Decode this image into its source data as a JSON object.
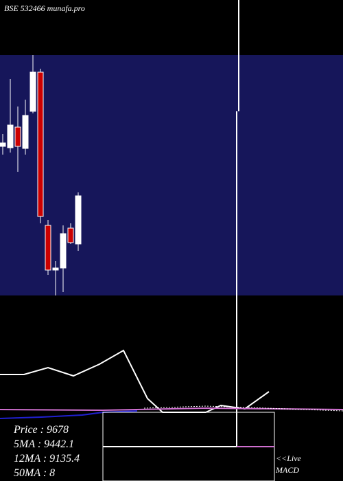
{
  "chart_data": {
    "type": "candlestick",
    "title": "BSE 532466 munafa.pro",
    "ylim": [
      8228,
      11728
    ],
    "up_color": "#ffffff",
    "down_color": "#cc0000",
    "open": [
      10398,
      10378,
      10678,
      10368,
      10908,
      11478,
      9248,
      8598,
      8628,
      9208,
      8978
    ],
    "high": [
      10578,
      11378,
      10978,
      11078,
      11728,
      11528,
      9328,
      8728,
      9248,
      9278,
      9728
    ],
    "low": [
      10278,
      10308,
      10028,
      10278,
      10878,
      9278,
      8528,
      8228,
      8278,
      8978,
      8878
    ],
    "close": [
      10448,
      10708,
      10398,
      10848,
      11478,
      9378,
      8598,
      8628,
      9128,
      8998,
      9678
    ],
    "annotations": [
      "Price  : 9678",
      "5MA : 9442.1",
      "12MA : 9135.4",
      "50MA : 8"
    ],
    "live": "<<Live",
    "macd": "MACD"
  }
}
